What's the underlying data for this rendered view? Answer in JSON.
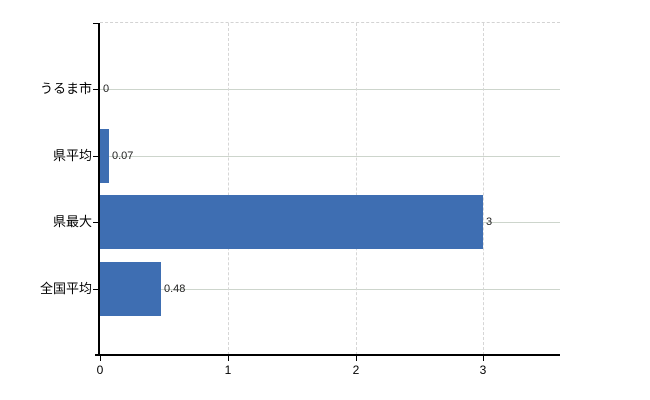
{
  "chart_data": {
    "type": "bar",
    "orientation": "horizontal",
    "title": "",
    "xlabel": "",
    "ylabel": "",
    "categories": [
      "うるま市",
      "県平均",
      "県最大",
      "全国平均"
    ],
    "values": [
      0,
      0.07,
      3,
      0.48
    ],
    "value_labels": [
      "0",
      "0.07",
      "3",
      "0.48"
    ],
    "x_tick_values": [
      0,
      1,
      2,
      3
    ],
    "x_tick_labels": [
      "0",
      "1",
      "2",
      "3"
    ],
    "xlim": [
      0,
      3.6
    ],
    "legend_position": "none",
    "grid": {
      "horizontal": "solid line at each category center",
      "vertical": "dashed lines at x ticks 1,2,3",
      "top_border": "dashed"
    },
    "colors": {
      "bar": "#3E6EB2",
      "horizontal_grid": "#CDD5CC",
      "vertical_grid": "#D6D6D6",
      "top_border": "#D3D3D3",
      "axis": "#000000",
      "category_text": "#000000",
      "value_text": "#222222",
      "tick_text": "#000000",
      "background": "#FFFFFF"
    }
  }
}
